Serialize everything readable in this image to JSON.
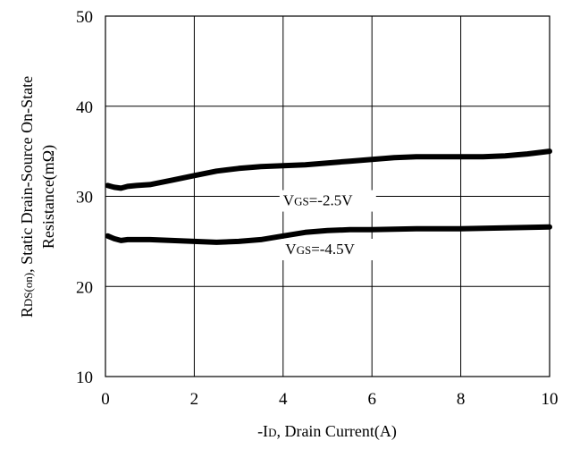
{
  "chart_data": {
    "type": "line",
    "title": "",
    "xlabel": "-ID, Drain Current(A)",
    "xlabel_parts": {
      "pre": "-I",
      "sub": "D",
      "post": ", Drain Current(A)"
    },
    "ylabel": "RDS(on), Static Drain-Source On-State Resistance(mΩ)",
    "ylabel_parts": {
      "line1_pre": "R",
      "line1_sub": "DS(on)",
      "line1_post": ", Static Drain-Source On-State",
      "line2": "Resistance(mΩ)"
    },
    "xlim": [
      0,
      10
    ],
    "ylim": [
      10,
      50
    ],
    "xticks": [
      0,
      2,
      4,
      6,
      8,
      10
    ],
    "yticks": [
      10,
      20,
      30,
      40,
      50
    ],
    "xtick_labels": [
      "0",
      "2",
      "4",
      "6",
      "8",
      "10"
    ],
    "ytick_labels": [
      "10",
      "20",
      "30",
      "40",
      "50"
    ],
    "grid": true,
    "series": [
      {
        "name": "VGS=-2.5V",
        "label_parts": {
          "pre": "V",
          "sub": "GS",
          "post": "=-2.5V"
        },
        "color": "#000000",
        "x": [
          0.05,
          0.2,
          0.35,
          0.5,
          0.7,
          1.0,
          1.5,
          2.0,
          2.5,
          3.0,
          3.5,
          4.0,
          4.5,
          5.0,
          5.5,
          6.0,
          6.5,
          7.0,
          7.5,
          8.0,
          8.5,
          9.0,
          9.5,
          10.0
        ],
        "y": [
          31.2,
          31.0,
          30.9,
          31.1,
          31.2,
          31.3,
          31.8,
          32.3,
          32.8,
          33.1,
          33.3,
          33.4,
          33.5,
          33.7,
          33.9,
          34.1,
          34.3,
          34.4,
          34.4,
          34.4,
          34.4,
          34.5,
          34.7,
          35.0
        ]
      },
      {
        "name": "VGS=-4.5V",
        "label_parts": {
          "pre": "V",
          "sub": "GS",
          "post": "=-4.5V"
        },
        "color": "#000000",
        "x": [
          0.05,
          0.2,
          0.35,
          0.5,
          1.0,
          1.5,
          2.0,
          2.5,
          3.0,
          3.5,
          4.0,
          4.5,
          5.0,
          5.5,
          6.0,
          7.0,
          8.0,
          9.0,
          10.0
        ],
        "y": [
          25.6,
          25.3,
          25.1,
          25.2,
          25.2,
          25.1,
          25.0,
          24.9,
          25.0,
          25.2,
          25.6,
          26.0,
          26.2,
          26.3,
          26.3,
          26.4,
          26.4,
          26.5,
          26.6
        ]
      }
    ]
  }
}
